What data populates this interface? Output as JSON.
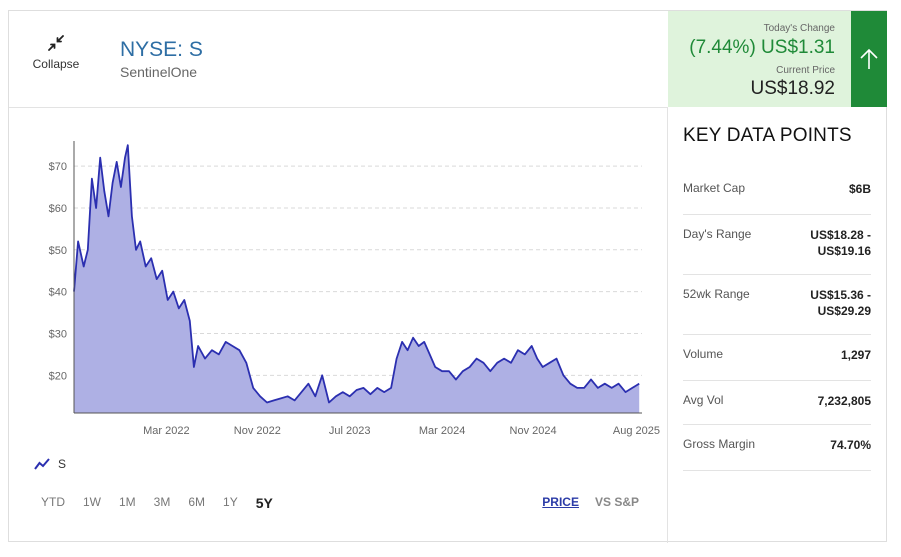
{
  "header": {
    "collapse_label": "Collapse",
    "ticker": "NYSE: S",
    "company": "SentinelOne",
    "todays_change_label": "Today's Change",
    "todays_change_value": "(7.44%) US$1.31",
    "current_price_label": "Current Price",
    "current_price_value": "US$18.92",
    "colors": {
      "positive": "#1f8a38",
      "positive_bg": "#dff3dc",
      "ticker": "#2e6ea4"
    }
  },
  "legend": {
    "series_label": "S",
    "icon": "line-chart-icon"
  },
  "range_buttons": [
    "YTD",
    "1W",
    "1M",
    "3M",
    "6M",
    "1Y",
    "5Y"
  ],
  "range_selected": "5Y",
  "view_toggle": {
    "price": "PRICE",
    "vs_sp": "VS S&P",
    "selected": "PRICE"
  },
  "key_data": {
    "title": "KEY DATA POINTS",
    "rows": [
      {
        "label": "Market Cap",
        "value": "$6B"
      },
      {
        "label": "Day's Range",
        "value": "US$18.28 - US$19.16"
      },
      {
        "label": "52wk Range",
        "value": "US$15.36 - US$29.29"
      },
      {
        "label": "Volume",
        "value": "1,297"
      },
      {
        "label": "Avg Vol",
        "value": "7,232,805"
      },
      {
        "label": "Gross Margin",
        "value": "74.70%"
      }
    ]
  },
  "chart_data": {
    "type": "area",
    "color_line": "#2b2fb0",
    "color_fill": "#aeb0e4",
    "y_ticks": [
      "$20",
      "$30",
      "$40",
      "$50",
      "$60",
      "$70"
    ],
    "y_tick_values": [
      20,
      30,
      40,
      50,
      60,
      70
    ],
    "x_ticks": [
      "Mar 2022",
      "Nov 2022",
      "Jul 2023",
      "Mar 2024",
      "Nov 2024",
      "Aug 2025"
    ],
    "x_tick_positions": [
      2022.17,
      2022.83,
      2023.5,
      2024.17,
      2024.83,
      2025.58
    ],
    "xlim": [
      2021.5,
      2025.62
    ],
    "ylim": [
      11,
      76
    ],
    "grid": "horizontal-dashed",
    "series": [
      {
        "name": "S",
        "points": [
          [
            2021.5,
            40
          ],
          [
            2021.53,
            52
          ],
          [
            2021.57,
            46
          ],
          [
            2021.6,
            50
          ],
          [
            2021.63,
            67
          ],
          [
            2021.66,
            60
          ],
          [
            2021.69,
            72
          ],
          [
            2021.72,
            64
          ],
          [
            2021.75,
            58
          ],
          [
            2021.78,
            66
          ],
          [
            2021.81,
            71
          ],
          [
            2021.84,
            65
          ],
          [
            2021.87,
            72
          ],
          [
            2021.89,
            75
          ],
          [
            2021.92,
            58
          ],
          [
            2021.95,
            50
          ],
          [
            2021.98,
            52
          ],
          [
            2022.02,
            46
          ],
          [
            2022.06,
            48
          ],
          [
            2022.1,
            43
          ],
          [
            2022.14,
            45
          ],
          [
            2022.18,
            38
          ],
          [
            2022.22,
            40
          ],
          [
            2022.26,
            36
          ],
          [
            2022.3,
            38
          ],
          [
            2022.34,
            33
          ],
          [
            2022.37,
            22
          ],
          [
            2022.4,
            27
          ],
          [
            2022.45,
            24
          ],
          [
            2022.5,
            26
          ],
          [
            2022.55,
            25
          ],
          [
            2022.6,
            28
          ],
          [
            2022.65,
            27
          ],
          [
            2022.7,
            26
          ],
          [
            2022.75,
            23
          ],
          [
            2022.8,
            17
          ],
          [
            2022.85,
            15
          ],
          [
            2022.9,
            13.5
          ],
          [
            2022.95,
            14
          ],
          [
            2023.0,
            14.5
          ],
          [
            2023.05,
            15
          ],
          [
            2023.1,
            14
          ],
          [
            2023.15,
            16
          ],
          [
            2023.2,
            18
          ],
          [
            2023.25,
            15
          ],
          [
            2023.3,
            20
          ],
          [
            2023.35,
            13.5
          ],
          [
            2023.4,
            15
          ],
          [
            2023.45,
            16
          ],
          [
            2023.5,
            15
          ],
          [
            2023.55,
            16.5
          ],
          [
            2023.6,
            17
          ],
          [
            2023.65,
            15.5
          ],
          [
            2023.7,
            17
          ],
          [
            2023.75,
            16
          ],
          [
            2023.8,
            17
          ],
          [
            2023.84,
            24
          ],
          [
            2023.88,
            28
          ],
          [
            2023.92,
            26
          ],
          [
            2023.96,
            29
          ],
          [
            2024.0,
            27
          ],
          [
            2024.04,
            28
          ],
          [
            2024.08,
            25
          ],
          [
            2024.12,
            22
          ],
          [
            2024.17,
            21
          ],
          [
            2024.22,
            21
          ],
          [
            2024.27,
            19
          ],
          [
            2024.32,
            21
          ],
          [
            2024.37,
            22
          ],
          [
            2024.42,
            24
          ],
          [
            2024.47,
            23
          ],
          [
            2024.52,
            21
          ],
          [
            2024.57,
            23
          ],
          [
            2024.62,
            24
          ],
          [
            2024.67,
            23
          ],
          [
            2024.72,
            26
          ],
          [
            2024.77,
            25
          ],
          [
            2024.82,
            27
          ],
          [
            2024.86,
            24
          ],
          [
            2024.9,
            22
          ],
          [
            2024.95,
            23
          ],
          [
            2025.0,
            24
          ],
          [
            2025.05,
            20
          ],
          [
            2025.1,
            18
          ],
          [
            2025.15,
            17
          ],
          [
            2025.2,
            17
          ],
          [
            2025.25,
            19
          ],
          [
            2025.3,
            17
          ],
          [
            2025.35,
            18
          ],
          [
            2025.4,
            17
          ],
          [
            2025.45,
            18
          ],
          [
            2025.5,
            16
          ],
          [
            2025.55,
            17
          ],
          [
            2025.6,
            18
          ]
        ]
      }
    ]
  }
}
